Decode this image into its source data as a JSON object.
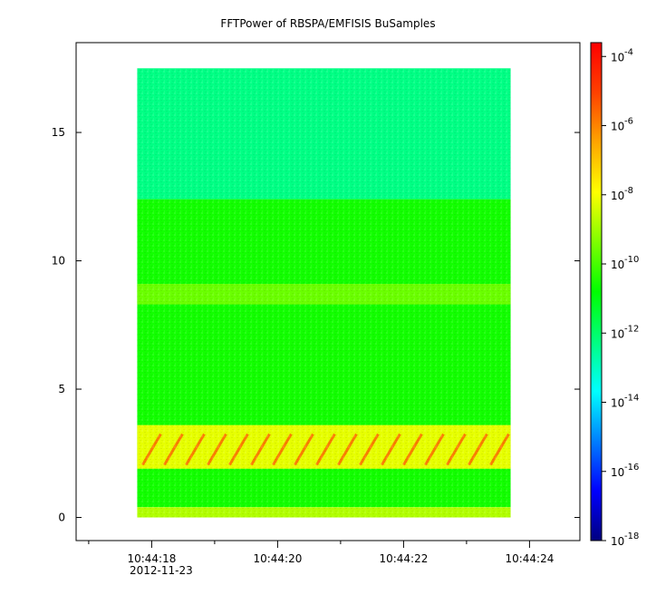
{
  "chart_data": {
    "type": "heatmap",
    "title": "FFTPower of RBSPA/EMFISIS  BuSamples",
    "xlabel": "",
    "ylabel": "",
    "date_label": "2012-11-23",
    "x_tick_labels": [
      "10:44:18",
      "10:44:20",
      "10:44:22",
      "10:44:24"
    ],
    "x_tick_seconds": [
      18,
      20,
      22,
      24
    ],
    "x_minor_seconds": [
      17,
      19,
      21,
      23
    ],
    "xlim_seconds": [
      16.8,
      24.8
    ],
    "data_extent_seconds": [
      17.77,
      23.7
    ],
    "y_ticks": [
      0,
      5,
      10,
      15
    ],
    "ylim": [
      -0.9,
      18.5
    ],
    "data_extent_y": [
      0,
      17.5
    ],
    "colorbar": {
      "scale": "log",
      "range": [
        -18,
        -3.6
      ],
      "tick_labels": [
        "10",
        "10",
        "10",
        "10",
        "10",
        "10",
        "10",
        "10"
      ],
      "tick_exponents": [
        "-4",
        "-6",
        "-8",
        "-10",
        "-12",
        "-14",
        "-16",
        "-18"
      ],
      "tick_values": [
        -4,
        -6,
        -8,
        -10,
        -12,
        -14,
        -16,
        -18
      ],
      "colors": [
        "#00007f",
        "#0000ff",
        "#007fff",
        "#00ffff",
        "#00ff7f",
        "#00ff00",
        "#7fff00",
        "#ffff00",
        "#ffa500",
        "#ff4000",
        "#ff0000"
      ]
    },
    "bands": [
      {
        "y0": 12.4,
        "y1": 17.5,
        "level": -12.3
      },
      {
        "y0": 0.4,
        "y1": 12.4,
        "level": -10.6
      },
      {
        "y0": 8.3,
        "y1": 9.1,
        "level": -9.6
      },
      {
        "y0": 1.9,
        "y1": 3.6,
        "level": -8.2
      },
      {
        "y0": 0.0,
        "y1": 0.4,
        "level": -8.8
      }
    ]
  }
}
